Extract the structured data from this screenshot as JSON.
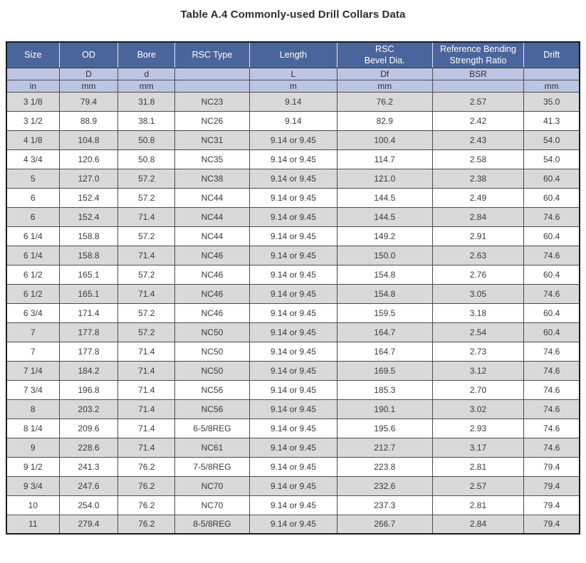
{
  "page": {
    "title": "Table A.4 Commonly-used Drill Collars Data"
  },
  "colors": {
    "header_bg": "#4a659b",
    "subheader_bg": "#bcc5e2",
    "row_alt_bg": "#d9d9d9",
    "row_bg": "#ffffff",
    "header_text": "#ffffff",
    "body_text": "#3a3a3a"
  },
  "table": {
    "columns": [
      {
        "label": "Size",
        "symbol": "",
        "unit": "in"
      },
      {
        "label": "OD",
        "symbol": "D",
        "unit": "mm"
      },
      {
        "label": "Bore",
        "symbol": "d",
        "unit": "mm"
      },
      {
        "label": "RSC Type",
        "symbol": "",
        "unit": ""
      },
      {
        "label": "Length",
        "symbol": "L",
        "unit": "m"
      },
      {
        "label": "RSC\nBevel Dia.",
        "symbol": "Df",
        "unit": "mm"
      },
      {
        "label": "Reference Bending\nStrength Ratio",
        "symbol": "BSR",
        "unit": ""
      },
      {
        "label": "Drift",
        "symbol": "",
        "unit": "mm"
      }
    ],
    "rows": [
      [
        "3 1/8",
        "79.4",
        "31.8",
        "NC23",
        "9.14",
        "76.2",
        "2.57",
        "35.0"
      ],
      [
        "3 1/2",
        "88.9",
        "38.1",
        "NC26",
        "9.14",
        "82.9",
        "2.42",
        "41.3"
      ],
      [
        "4 1/8",
        "104.8",
        "50.8",
        "NC31",
        "9.14 or 9.45",
        "100.4",
        "2.43",
        "54.0"
      ],
      [
        "4 3/4",
        "120.6",
        "50.8",
        "NC35",
        "9.14 or 9.45",
        "114.7",
        "2.58",
        "54.0"
      ],
      [
        "5",
        "127.0",
        "57.2",
        "NC38",
        "9.14 or 9.45",
        "121.0",
        "2.38",
        "60.4"
      ],
      [
        "6",
        "152.4",
        "57.2",
        "NC44",
        "9.14 or 9.45",
        "144.5",
        "2.49",
        "60.4"
      ],
      [
        "6",
        "152.4",
        "71.4",
        "NC44",
        "9.14 or 9.45",
        "144.5",
        "2.84",
        "74.6"
      ],
      [
        "6 1/4",
        "158.8",
        "57.2",
        "NC44",
        "9.14 or 9.45",
        "149.2",
        "2.91",
        "60.4"
      ],
      [
        "6 1/4",
        "158.8",
        "71.4",
        "NC46",
        "9.14 or 9.45",
        "150.0",
        "2.63",
        "74.6"
      ],
      [
        "6 1/2",
        "165.1",
        "57.2",
        "NC46",
        "9.14 or 9.45",
        "154.8",
        "2.76",
        "60.4"
      ],
      [
        "6 1/2",
        "165.1",
        "71.4",
        "NC46",
        "9.14 or 9.45",
        "154.8",
        "3.05",
        "74.6"
      ],
      [
        "6 3/4",
        "171.4",
        "57.2",
        "NC46",
        "9.14 or 9.45",
        "159.5",
        "3.18",
        "60.4"
      ],
      [
        "7",
        "177.8",
        "57.2",
        "NC50",
        "9.14 or 9.45",
        "164.7",
        "2.54",
        "60.4"
      ],
      [
        "7",
        "177.8",
        "71.4",
        "NC50",
        "9.14 or 9.45",
        "164.7",
        "2.73",
        "74.6"
      ],
      [
        "7 1/4",
        "184.2",
        "71.4",
        "NC50",
        "9.14 or 9.45",
        "169.5",
        "3.12",
        "74.6"
      ],
      [
        "7 3/4",
        "196.8",
        "71.4",
        "NC56",
        "9.14 or 9.45",
        "185.3",
        "2.70",
        "74.6"
      ],
      [
        "8",
        "203.2",
        "71.4",
        "NC56",
        "9.14 or 9.45",
        "190.1",
        "3.02",
        "74.6"
      ],
      [
        "8 1/4",
        "209.6",
        "71.4",
        "6-5/8REG",
        "9.14 or 9.45",
        "195.6",
        "2.93",
        "74.6"
      ],
      [
        "9",
        "228.6",
        "71.4",
        "NC61",
        "9.14 or 9.45",
        "212.7",
        "3.17",
        "74.6"
      ],
      [
        "9 1/2",
        "241.3",
        "76.2",
        "7-5/8REG",
        "9.14 or 9.45",
        "223.8",
        "2.81",
        "79.4"
      ],
      [
        "9 3/4",
        "247.6",
        "76.2",
        "NC70",
        "9.14 or 9.45",
        "232.6",
        "2.57",
        "79.4"
      ],
      [
        "10",
        "254.0",
        "76.2",
        "NC70",
        "9.14 or 9.45",
        "237.3",
        "2.81",
        "79.4"
      ],
      [
        "11",
        "279.4",
        "76.2",
        "8-5/8REG",
        "9.14 or 9.45",
        "266.7",
        "2.84",
        "79.4"
      ]
    ]
  }
}
